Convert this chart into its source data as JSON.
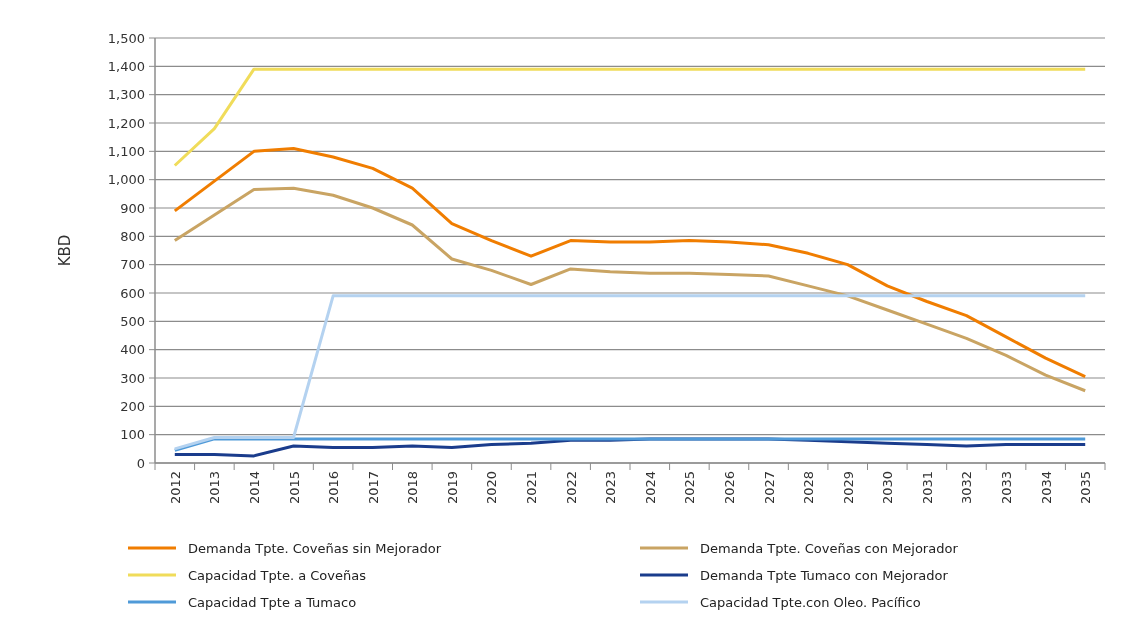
{
  "chart_data": {
    "type": "line",
    "ylabel": "KBD",
    "categories": [
      "2012",
      "2013",
      "2014",
      "2015",
      "2016",
      "2017",
      "2018",
      "2019",
      "2020",
      "2021",
      "2022",
      "2023",
      "2024",
      "2025",
      "2026",
      "2027",
      "2028",
      "2029",
      "2030",
      "2031",
      "3032",
      "2033",
      "2034",
      "2035"
    ],
    "ylim": [
      0,
      1500
    ],
    "yticks": [
      0,
      {
        "value": 100,
        "label": "100"
      },
      {
        "value": 200,
        "label": "200"
      },
      {
        "value": 300,
        "label": "300"
      },
      {
        "value": 400,
        "label": "400"
      },
      {
        "value": 500,
        "label": "500"
      },
      {
        "value": 600,
        "label": "600"
      },
      {
        "value": 700,
        "label": "700"
      },
      {
        "value": 800,
        "label": "800"
      },
      {
        "value": 900,
        "label": "900"
      },
      {
        "value": 1000,
        "label": "1,000"
      },
      {
        "value": 1100,
        "label": "1,100"
      },
      {
        "value": 1200,
        "label": "1,200"
      },
      {
        "value": 1300,
        "label": "1,300"
      },
      {
        "value": 1400,
        "label": "1,400"
      },
      {
        "value": 1500,
        "label": "1,500"
      }
    ],
    "grid": "y",
    "legend": "bottom",
    "marker": "none",
    "line_style": "solid",
    "series": [
      {
        "name": "Demanda Tpte. Coveñas sin Mejorador",
        "color": "#f07d00",
        "values": [
          890,
          995,
          1100,
          1110,
          1080,
          1040,
          970,
          845,
          785,
          730,
          785,
          780,
          780,
          785,
          780,
          770,
          740,
          700,
          625,
          570,
          520,
          445,
          370,
          305
        ]
      },
      {
        "name": "Demanda Tpte. Coveñas con Mejorador",
        "color": "#c9a463",
        "values": [
          785,
          875,
          965,
          970,
          945,
          900,
          840,
          720,
          680,
          630,
          685,
          675,
          670,
          670,
          665,
          660,
          625,
          590,
          540,
          490,
          440,
          380,
          310,
          255
        ]
      },
      {
        "name": "Capacidad Tpte. a Coveñas",
        "color": "#f0dc5a",
        "values": [
          1050,
          1180,
          1390,
          1390,
          1390,
          1390,
          1390,
          1390,
          1390,
          1390,
          1390,
          1390,
          1390,
          1390,
          1390,
          1390,
          1390,
          1390,
          1390,
          1390,
          1390,
          1390,
          1390,
          1390
        ]
      },
      {
        "name": "Demanda Tpte Tumaco con Mejorador",
        "color": "#1a3c8c",
        "values": [
          30,
          30,
          25,
          60,
          55,
          55,
          60,
          55,
          65,
          70,
          80,
          80,
          85,
          85,
          85,
          85,
          80,
          75,
          70,
          65,
          60,
          65,
          65,
          65
        ]
      },
      {
        "name": "Capacidad Tpte a Tumaco",
        "color": "#4f9ad8",
        "values": [
          45,
          85,
          85,
          85,
          85,
          85,
          85,
          85,
          85,
          85,
          85,
          85,
          85,
          85,
          85,
          85,
          85,
          85,
          85,
          85,
          85,
          85,
          85,
          85
        ]
      },
      {
        "name": "Capacidad Tpte.con Oleo. Pacífico",
        "color": "#b4d2f0",
        "values": [
          50,
          90,
          90,
          90,
          590,
          590,
          590,
          590,
          590,
          590,
          590,
          590,
          590,
          590,
          590,
          590,
          590,
          590,
          590,
          590,
          590,
          590,
          590,
          590
        ]
      }
    ]
  }
}
